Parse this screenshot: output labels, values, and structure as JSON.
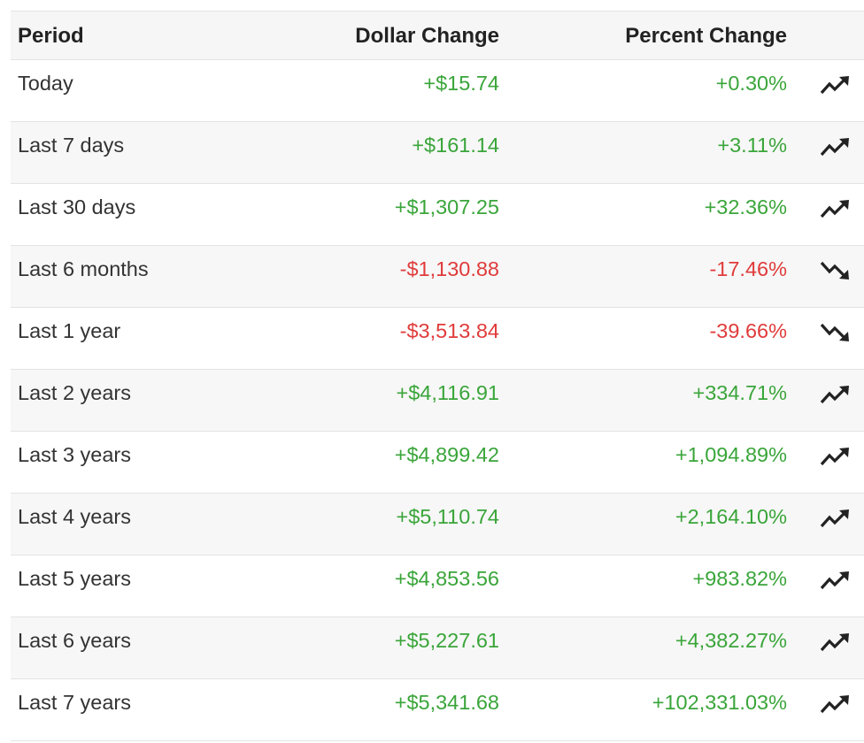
{
  "colors": {
    "positive": "#3aa53a",
    "negative": "#e03b3b",
    "header_bg": "#f6f6f6",
    "stripe_bg": "#f7f7f7"
  },
  "table": {
    "headers": {
      "period": "Period",
      "dollar": "Dollar Change",
      "percent": "Percent Change"
    },
    "rows": [
      {
        "period": "Today",
        "dollar": "+$15.74",
        "percent": "+0.30%",
        "trend": "up",
        "icon": "trending-up-icon"
      },
      {
        "period": "Last 7 days",
        "dollar": "+$161.14",
        "percent": "+3.11%",
        "trend": "up",
        "icon": "trending-up-icon"
      },
      {
        "period": "Last 30 days",
        "dollar": "+$1,307.25",
        "percent": "+32.36%",
        "trend": "up",
        "icon": "trending-up-icon"
      },
      {
        "period": "Last 6 months",
        "dollar": "-$1,130.88",
        "percent": "-17.46%",
        "trend": "down",
        "icon": "trending-down-icon"
      },
      {
        "period": "Last 1 year",
        "dollar": "-$3,513.84",
        "percent": "-39.66%",
        "trend": "down",
        "icon": "trending-down-icon"
      },
      {
        "period": "Last 2 years",
        "dollar": "+$4,116.91",
        "percent": "+334.71%",
        "trend": "up",
        "icon": "trending-up-icon"
      },
      {
        "period": "Last 3 years",
        "dollar": "+$4,899.42",
        "percent": "+1,094.89%",
        "trend": "up",
        "icon": "trending-up-icon"
      },
      {
        "period": "Last 4 years",
        "dollar": "+$5,110.74",
        "percent": "+2,164.10%",
        "trend": "up",
        "icon": "trending-up-icon"
      },
      {
        "period": "Last 5 years",
        "dollar": "+$4,853.56",
        "percent": "+983.82%",
        "trend": "up",
        "icon": "trending-up-icon"
      },
      {
        "period": "Last 6 years",
        "dollar": "+$5,227.61",
        "percent": "+4,382.27%",
        "trend": "up",
        "icon": "trending-up-icon"
      },
      {
        "period": "Last 7 years",
        "dollar": "+$5,341.68",
        "percent": "+102,331.03%",
        "trend": "up",
        "icon": "trending-up-icon"
      }
    ]
  }
}
